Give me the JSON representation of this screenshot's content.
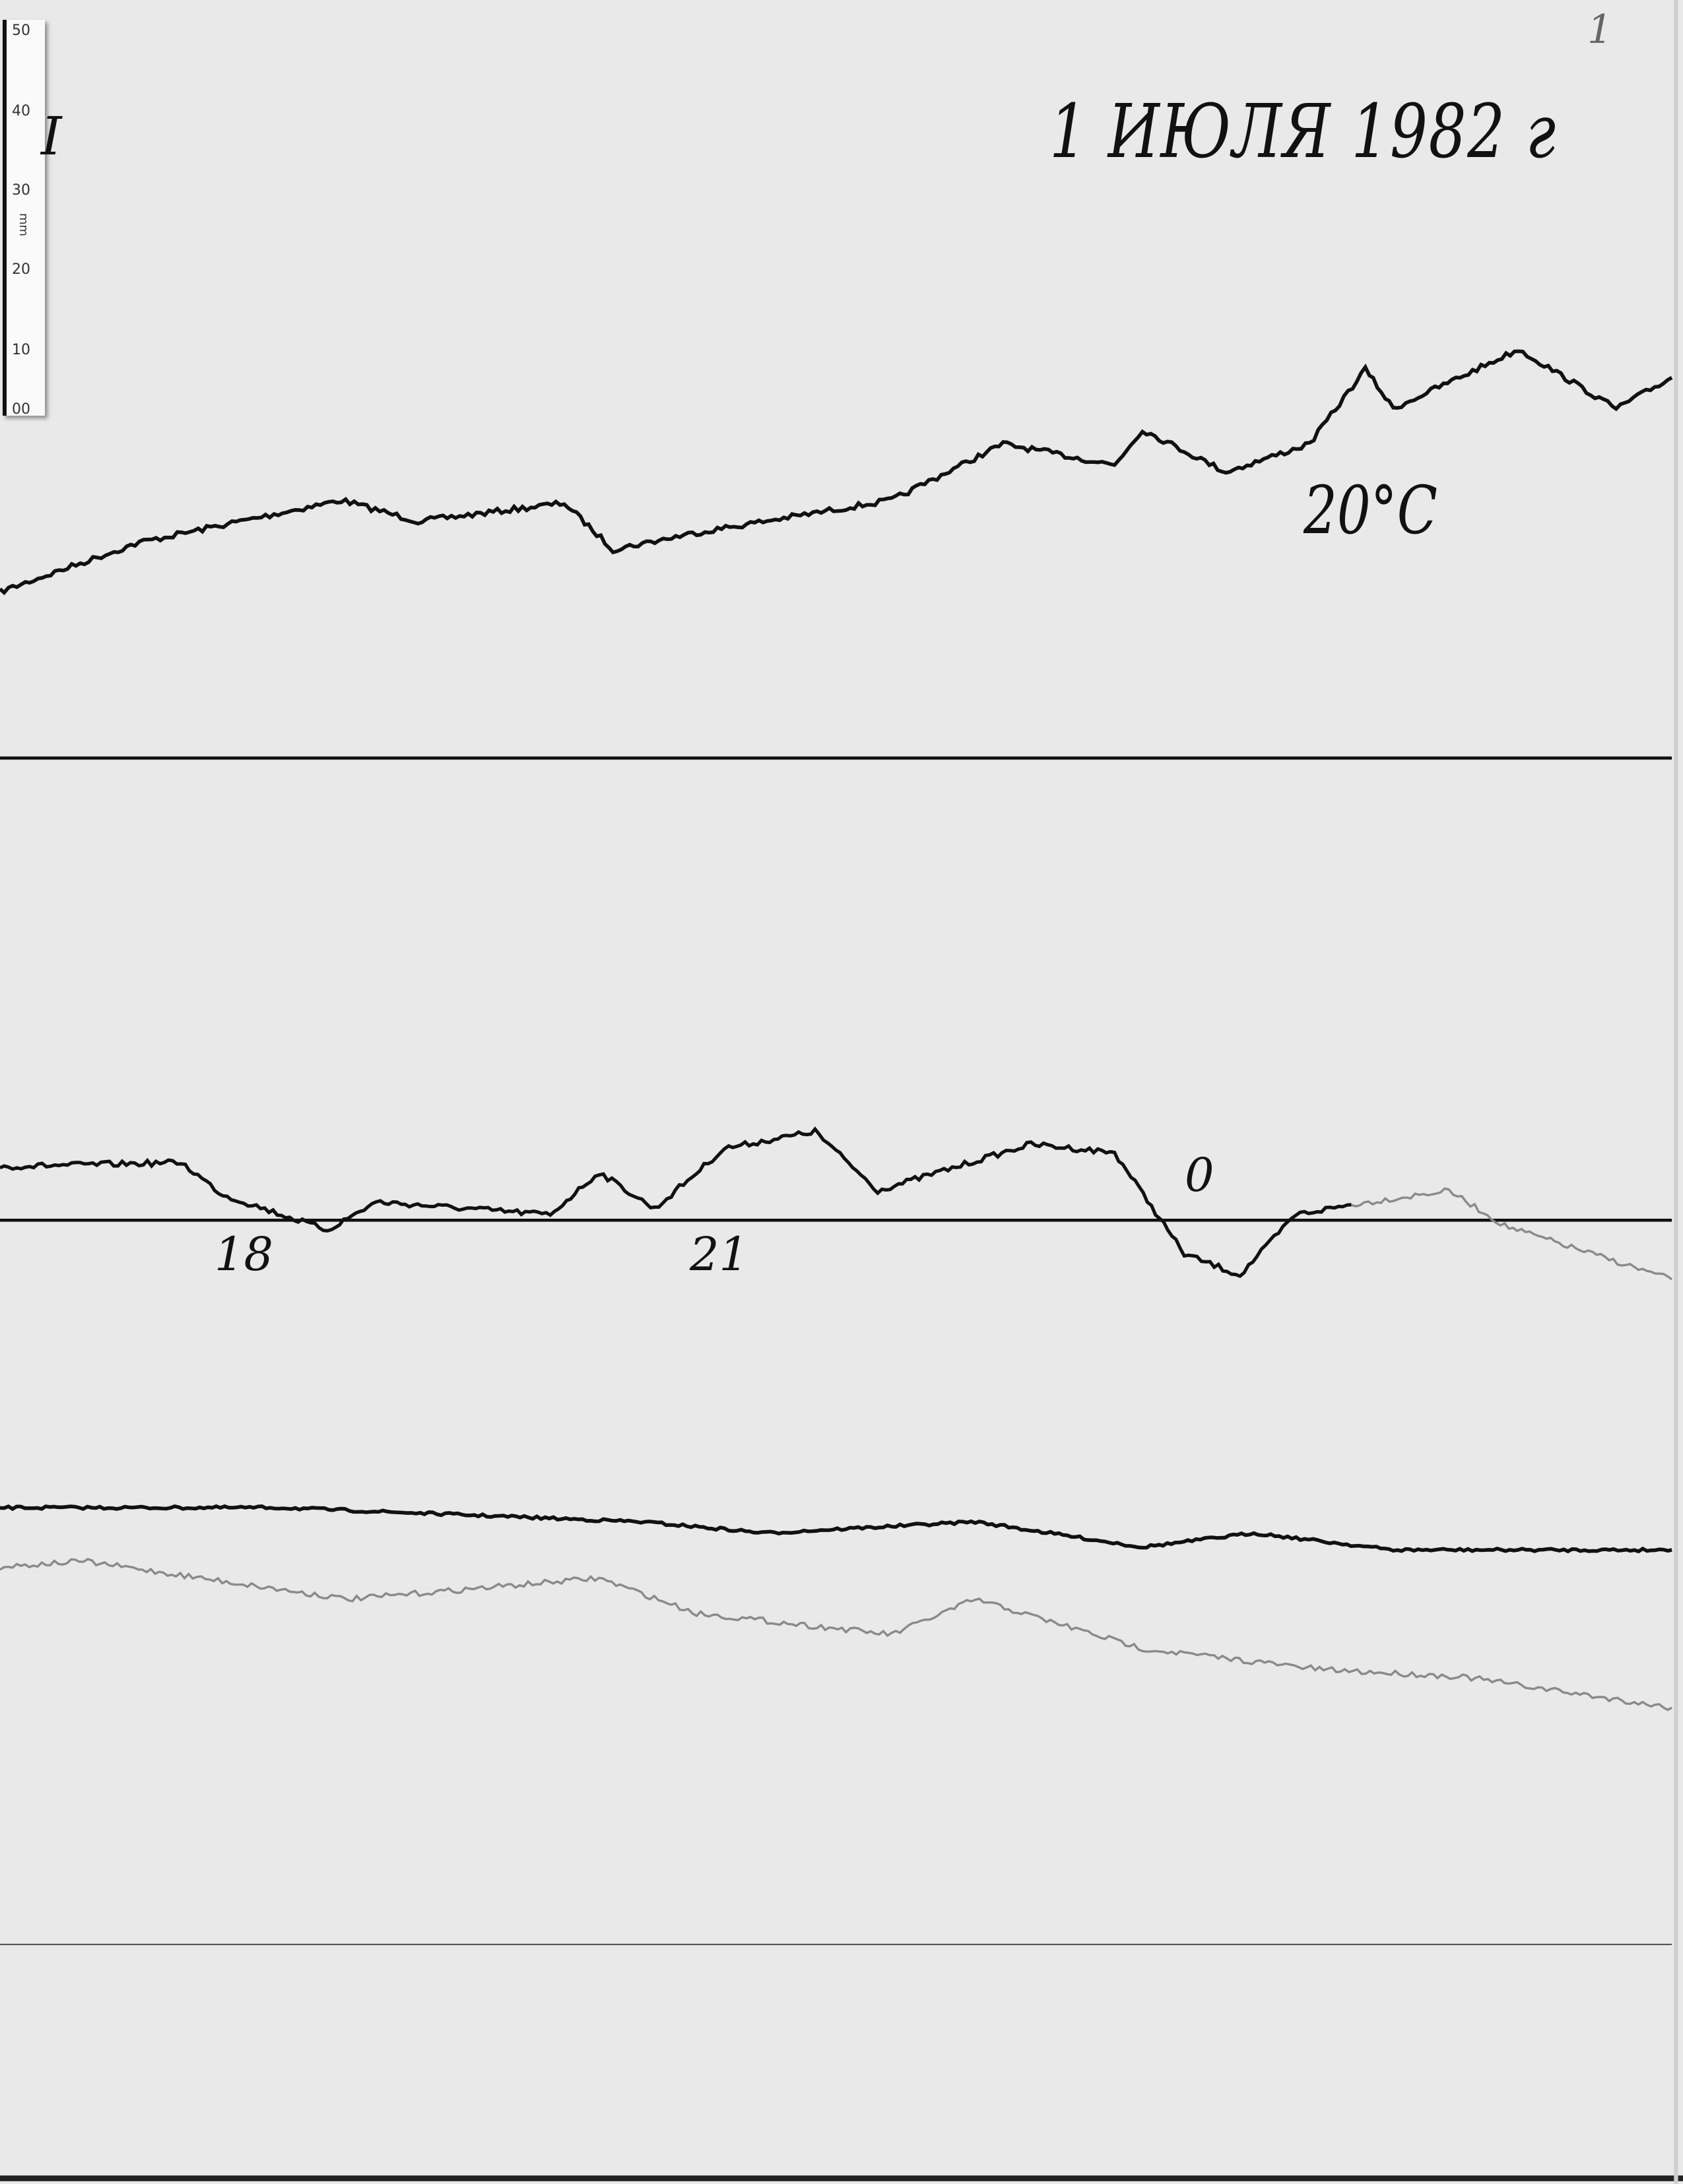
{
  "page_number": "1",
  "panel_mark": "I",
  "title": "1 ИЮЛЯ 1982 г",
  "temperature_note": "20°C",
  "hour_labels": [
    "18",
    "21",
    "0"
  ],
  "ruler": {
    "unit": "mm",
    "ticks": [
      "50",
      "40",
      "30",
      "20",
      "10",
      "00"
    ]
  },
  "colors": {
    "paper": "#e9e9e9",
    "trace": "#111111",
    "faint_trace": "#8a8a8a"
  }
}
